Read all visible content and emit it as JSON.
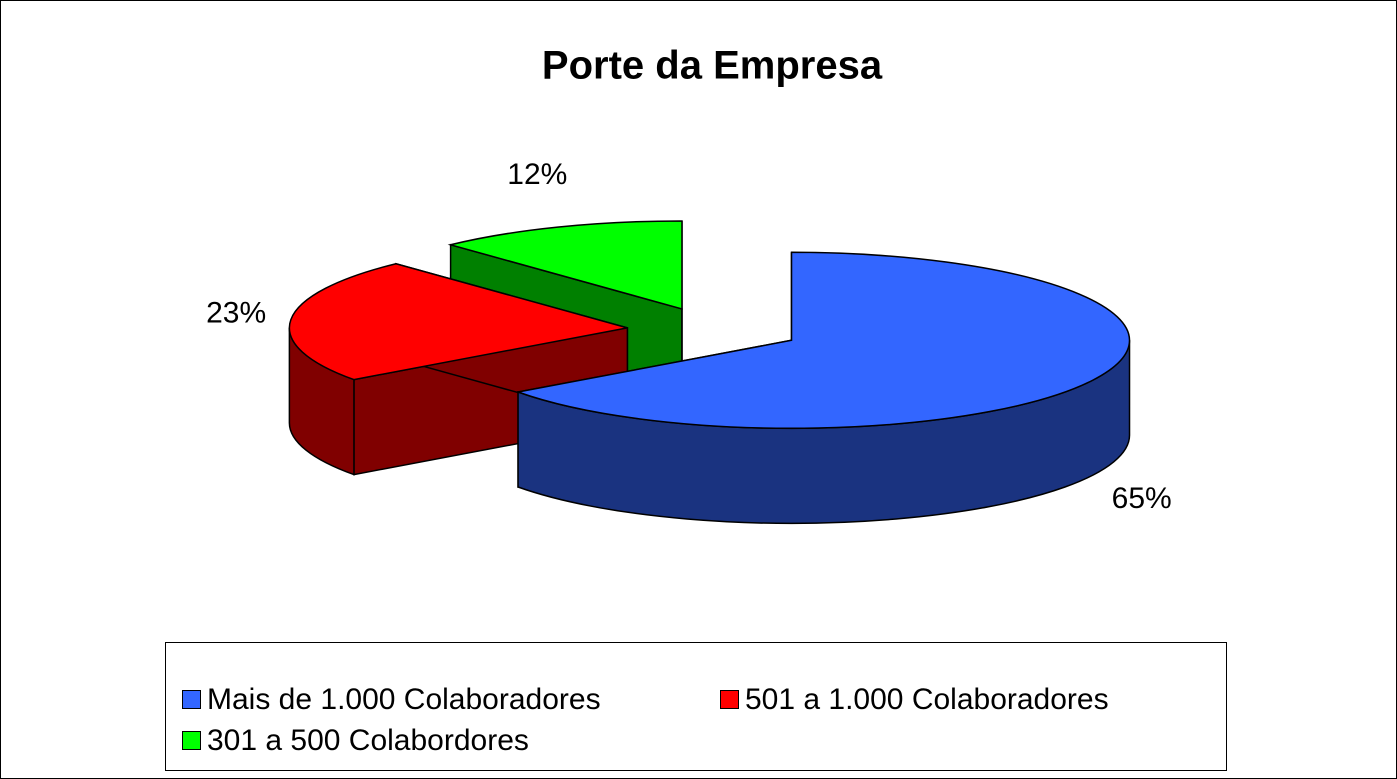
{
  "chart_data": {
    "type": "pie3d",
    "title": "Porte da Empresa",
    "categories": [
      "Mais de 1.000 Colaboradores",
      "501 a 1.000 Colaboradores",
      "301 a 500 Colabordores"
    ],
    "values": [
      65,
      23,
      12
    ],
    "value_labels": [
      "65%",
      "23%",
      "12%"
    ],
    "colors": [
      "#3366ff",
      "#ff0000",
      "#00ff00"
    ],
    "legend": "bottom"
  }
}
